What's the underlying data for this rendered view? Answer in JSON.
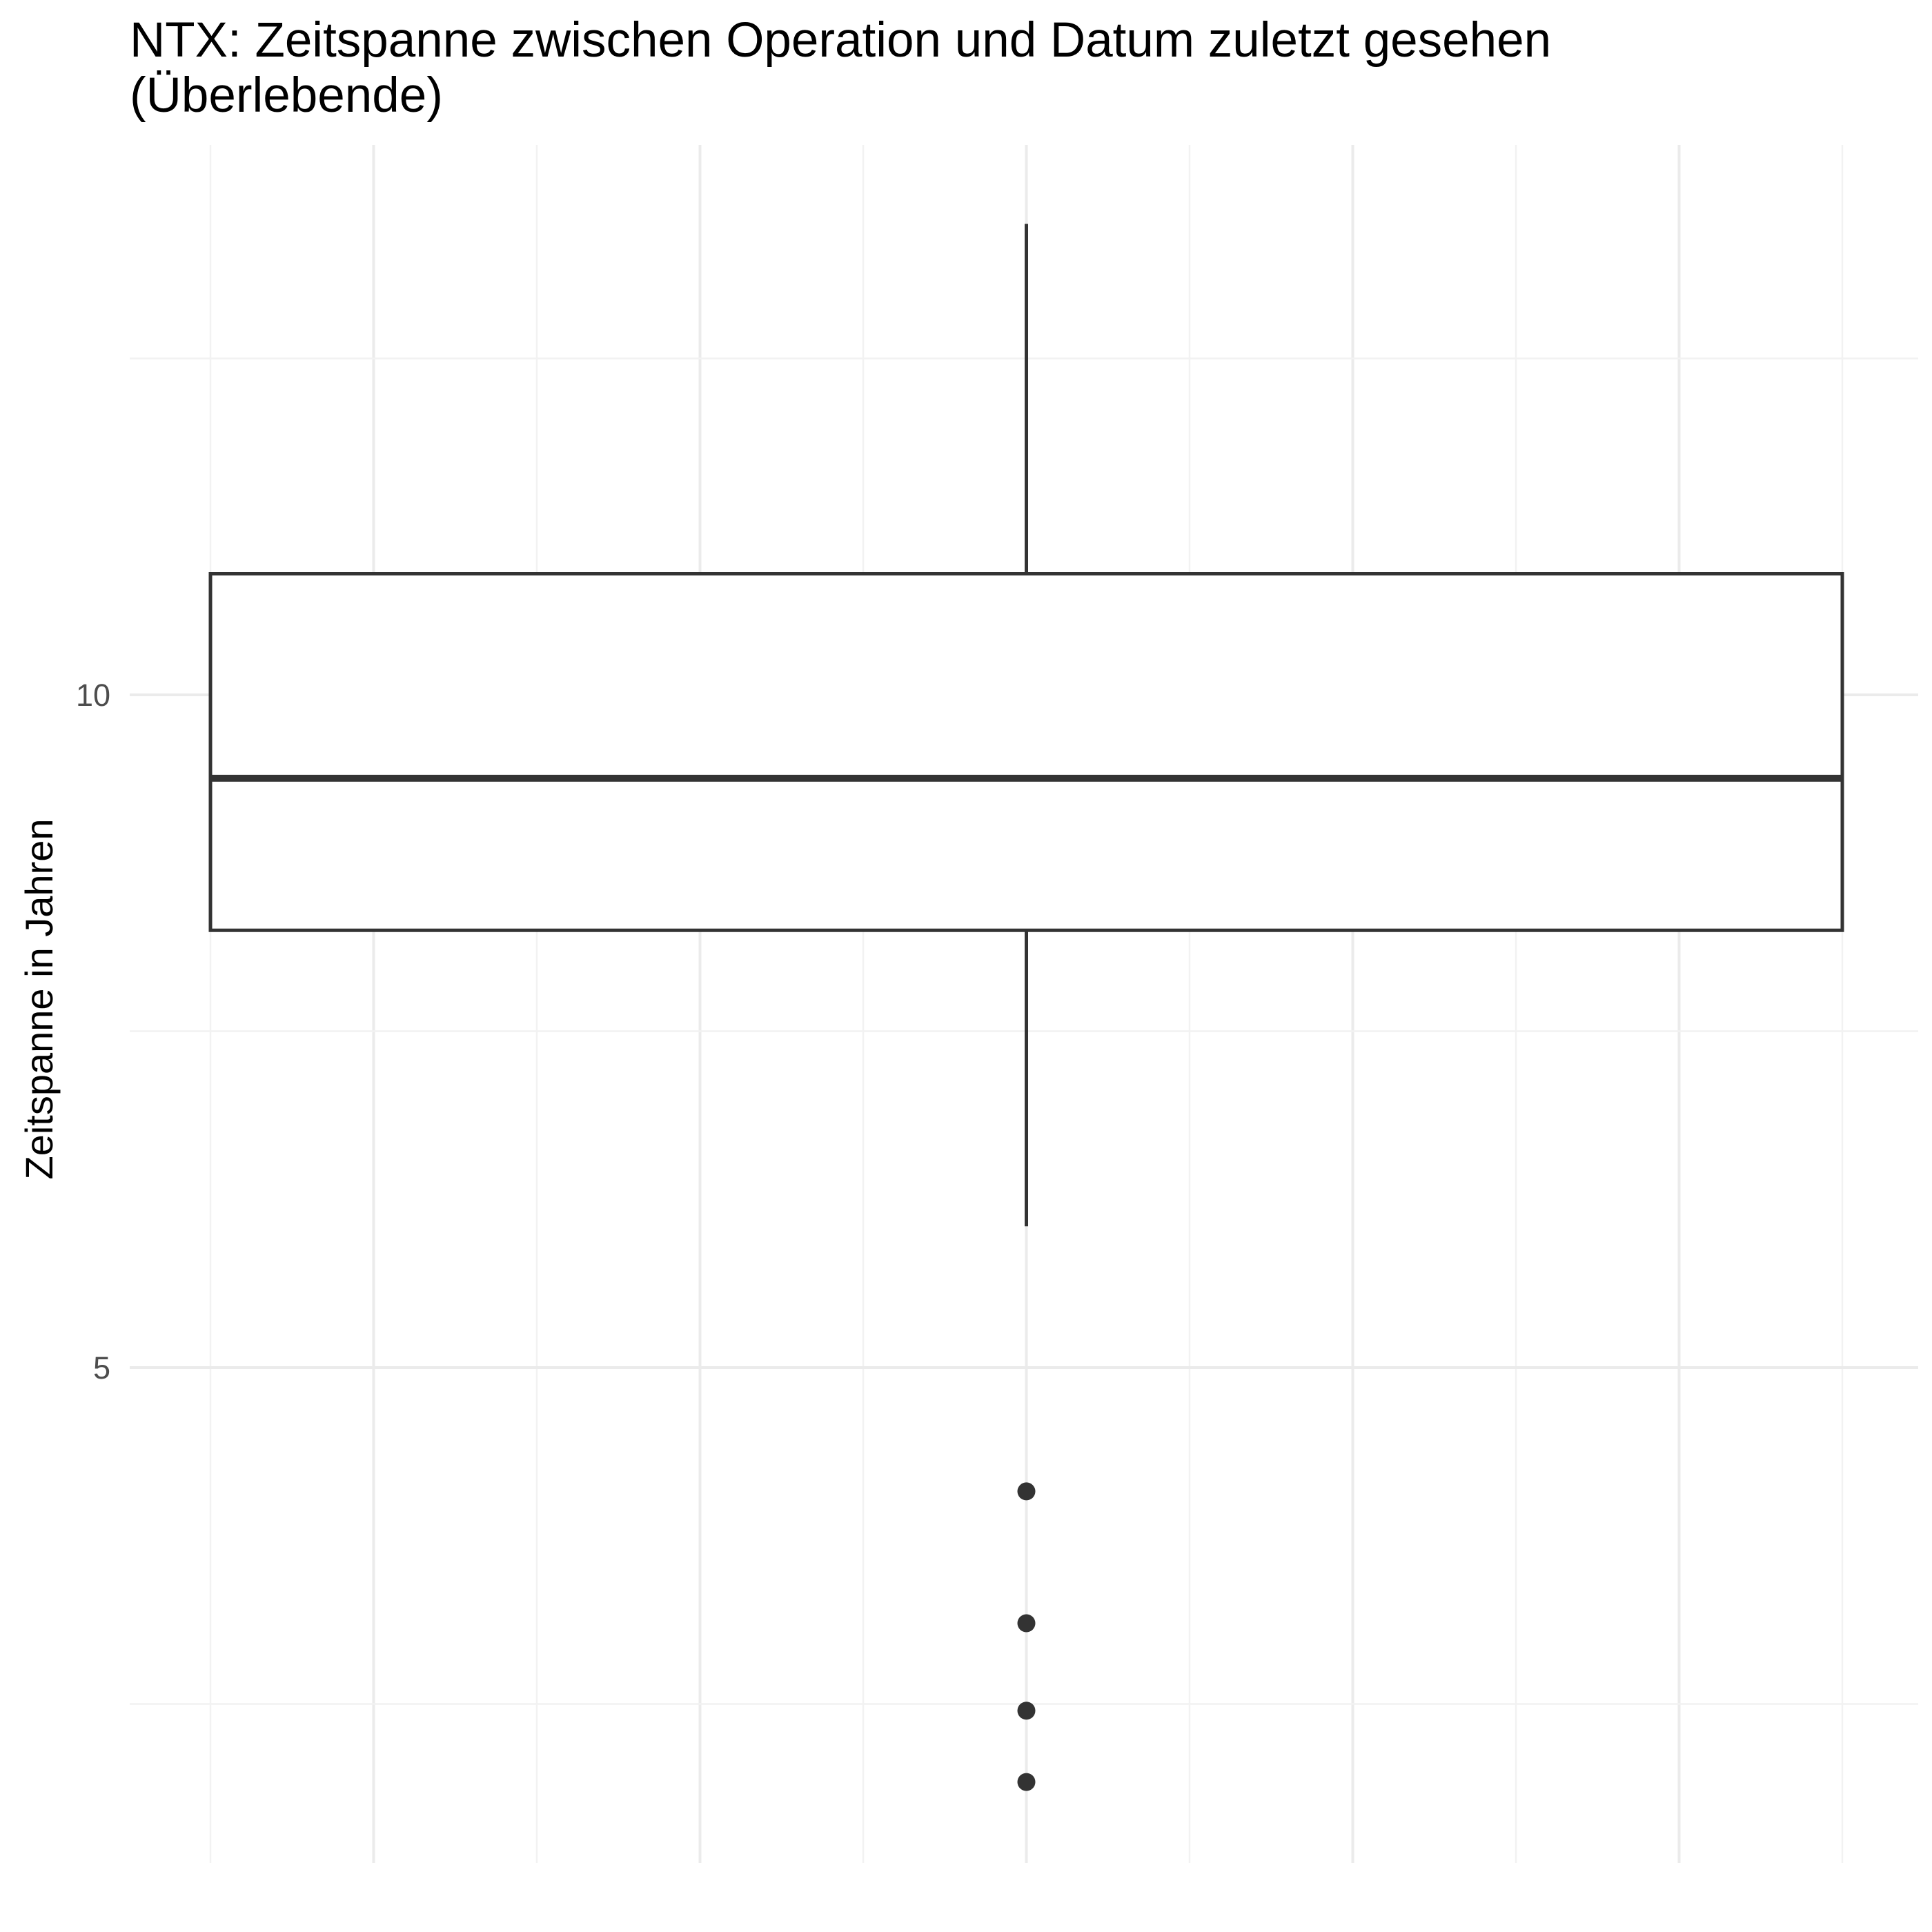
{
  "chart_data": {
    "type": "boxplot",
    "title_lines": [
      "NTX: Zeitspanne zwischen Operation und Datum zuletzt gesehen",
      "(Überlebende)"
    ],
    "xlabel": "",
    "ylabel": "Zeitspanne in Jahren",
    "ylim": [
      1.7,
      13.5
    ],
    "yticks": [
      5,
      10
    ],
    "ytick_labels": [
      "5",
      "10"
    ],
    "y_minor_gridlines": [
      2.5,
      7.5,
      12.5
    ],
    "grid": true,
    "box": {
      "whisker_low": 6.05,
      "q1": 8.25,
      "median": 9.38,
      "q3": 10.9,
      "whisker_high": 13.5
    },
    "outliers": [
      4.08,
      3.1,
      2.45,
      1.92
    ],
    "colors": {
      "box_stroke": "#333333",
      "box_fill": "#ffffff",
      "grid_major": "#ebebeb",
      "grid_minor": "#f2f2f2"
    }
  }
}
